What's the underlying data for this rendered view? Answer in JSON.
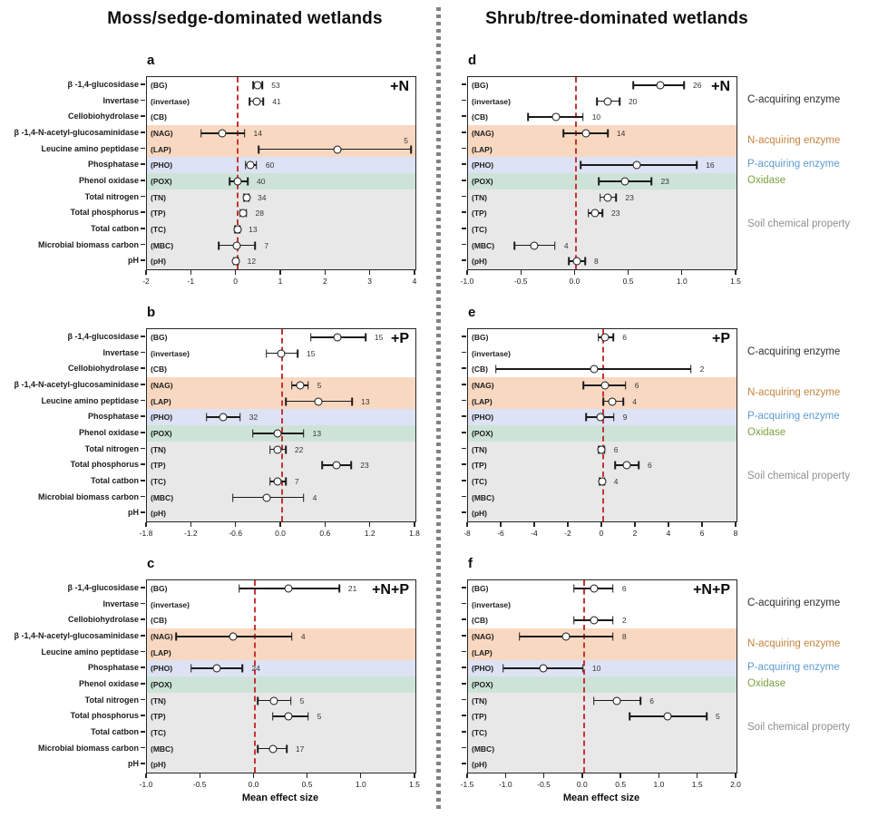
{
  "titles": {
    "left": "Moss/sedge-dominated wetlands",
    "right": "Shrub/tree-dominated wetlands"
  },
  "xaxis_title": "Mean effect size",
  "zero_line_color": "#c63434",
  "row_labels": {
    "full": [
      "β -1,4-glucosidase",
      "Invertase",
      "Cellobiohydrolase",
      "β -1,4-N-acetyl-glucosaminidase",
      "Leucine amino peptidase",
      "Phosphatase",
      "Phenol oxidase",
      "Total nitrogen",
      "Total phosphorus",
      "Total catbon",
      "Microbial biomass carbon",
      "pH"
    ],
    "abbr": [
      "(BG)",
      "(invertase)",
      "(CB)",
      "(NAG)",
      "(LAP)",
      "(PHO)",
      "(POX)",
      "(TN)",
      "(TP)",
      "(TC)",
      "(MBC)",
      "(pH)"
    ]
  },
  "row_categories": [
    "c",
    "c",
    "c",
    "n",
    "n",
    "p",
    "ox",
    "soil",
    "soil",
    "soil",
    "soil",
    "soil"
  ],
  "band_colors": {
    "c": "#ffffff",
    "n": "#f9d8c1",
    "p": "#dde2f4",
    "ox": "#cde3d8",
    "soil": "#e8e8e8"
  },
  "categories_legend": [
    {
      "key": "c",
      "label": "C-acquiring enzyme",
      "color": "#2e2e2e"
    },
    {
      "key": "n",
      "label": "N-acquiring enzyme",
      "color": "#c5843e"
    },
    {
      "key": "p",
      "label": "P-acquiring enzyme",
      "color": "#5d9bd1"
    },
    {
      "key": "ox",
      "label": "Oxidase",
      "color": "#7ca23f"
    },
    {
      "key": "soil",
      "label": "Soil chemical property",
      "color": "#8f8f8f"
    }
  ],
  "chart_data": {
    "type": "scatter",
    "subtype": "forest-plot-with-error-bars",
    "marker": "open-circle",
    "grid": false,
    "rows": [
      "BG",
      "invertase",
      "CB",
      "NAG",
      "LAP",
      "PHO",
      "POX",
      "TN",
      "TP",
      "TC",
      "MBC",
      "pH"
    ],
    "panels": [
      {
        "id": "a",
        "row": 0,
        "col": "left",
        "wetland": "Moss/sedge-dominated",
        "treatment": "+N",
        "xlim": [
          -2,
          4
        ],
        "tick_values": [
          -2,
          -1,
          0,
          1,
          2,
          3,
          4
        ],
        "tick_labels": [
          "-2",
          "-1",
          "0",
          "1",
          "2",
          "3",
          "4"
        ],
        "points": [
          {
            "mean": 0.47,
            "lo": 0.37,
            "hi": 0.58,
            "n": 53
          },
          {
            "mean": 0.45,
            "lo": 0.3,
            "hi": 0.6,
            "n": 41
          },
          null,
          {
            "mean": -0.32,
            "lo": -0.79,
            "hi": 0.18,
            "n": 14
          },
          {
            "mean": 2.25,
            "lo": 0.5,
            "hi": 3.9,
            "n": 5
          },
          {
            "mean": 0.32,
            "lo": 0.2,
            "hi": 0.45,
            "n": 60
          },
          {
            "mean": 0.03,
            "lo": -0.15,
            "hi": 0.25,
            "n": 40
          },
          {
            "mean": 0.22,
            "lo": 0.17,
            "hi": 0.27,
            "n": 34
          },
          {
            "mean": 0.15,
            "lo": 0.08,
            "hi": 0.22,
            "n": 28
          },
          {
            "mean": 0.02,
            "lo": -0.03,
            "hi": 0.07,
            "n": 13
          },
          {
            "mean": 0.0,
            "lo": -0.4,
            "hi": 0.42,
            "n": 7
          },
          {
            "mean": -0.01,
            "lo": -0.06,
            "hi": 0.04,
            "n": 12
          }
        ]
      },
      {
        "id": "b",
        "row": 1,
        "col": "left",
        "wetland": "Moss/sedge-dominated",
        "treatment": "+P",
        "xlim": [
          -1.8,
          1.8
        ],
        "tick_values": [
          -1.8,
          -1.2,
          -0.6,
          0,
          0.6,
          1.2,
          1.8
        ],
        "tick_labels": [
          "-1.8",
          "-1.2",
          "-0.6",
          "0.0",
          "0.6",
          "1.2",
          "1.8"
        ],
        "points": [
          {
            "mean": 0.75,
            "lo": 0.4,
            "hi": 1.13,
            "n": 15
          },
          {
            "mean": 0.0,
            "lo": -0.2,
            "hi": 0.22,
            "n": 15
          },
          null,
          {
            "mean": 0.25,
            "lo": 0.14,
            "hi": 0.36,
            "n": 5
          },
          {
            "mean": 0.5,
            "lo": 0.06,
            "hi": 0.95,
            "n": 13
          },
          {
            "mean": -0.78,
            "lo": -1.0,
            "hi": -0.55,
            "n": 32
          },
          {
            "mean": -0.05,
            "lo": -0.38,
            "hi": 0.3,
            "n": 13
          },
          {
            "mean": -0.05,
            "lo": -0.15,
            "hi": 0.06,
            "n": 22
          },
          {
            "mean": 0.74,
            "lo": 0.55,
            "hi": 0.94,
            "n": 23
          },
          {
            "mean": -0.05,
            "lo": -0.15,
            "hi": 0.06,
            "n": 7
          },
          {
            "mean": -0.2,
            "lo": -0.65,
            "hi": 0.3,
            "n": 4
          },
          null
        ]
      },
      {
        "id": "c",
        "row": 2,
        "col": "left",
        "wetland": "Moss/sedge-dominated",
        "treatment": "+N+P",
        "xlim": [
          -1.0,
          1.5
        ],
        "tick_values": [
          -1.0,
          -0.5,
          0,
          0.5,
          1.0,
          1.5
        ],
        "tick_labels": [
          "-1.0",
          "-0.5",
          "0.0",
          "0.5",
          "1.0",
          "1.5"
        ],
        "points": [
          {
            "mean": 0.32,
            "lo": -0.14,
            "hi": 0.79,
            "n": 21
          },
          null,
          null,
          {
            "mean": -0.2,
            "lo": -0.73,
            "hi": 0.35,
            "n": 4
          },
          null,
          {
            "mean": -0.35,
            "lo": -0.59,
            "hi": -0.11,
            "n": 24
          },
          null,
          {
            "mean": 0.18,
            "lo": 0.03,
            "hi": 0.34,
            "n": 5
          },
          {
            "mean": 0.32,
            "lo": 0.17,
            "hi": 0.5,
            "n": 5
          },
          null,
          {
            "mean": 0.17,
            "lo": 0.03,
            "hi": 0.3,
            "n": 17
          },
          null
        ]
      },
      {
        "id": "d",
        "row": 0,
        "col": "right",
        "wetland": "Shrub/tree-dominated",
        "treatment": "+N",
        "xlim": [
          -1.0,
          1.5
        ],
        "tick_values": [
          -1.0,
          -0.5,
          0,
          0.5,
          1.0,
          1.5
        ],
        "tick_labels": [
          "-1.0",
          "-0.5",
          "0.0",
          "0.5",
          "1.0",
          "1.5"
        ],
        "points": [
          {
            "mean": 0.79,
            "lo": 0.54,
            "hi": 1.01,
            "n": 26
          },
          {
            "mean": 0.3,
            "lo": 0.2,
            "hi": 0.41,
            "n": 20
          },
          {
            "mean": -0.18,
            "lo": -0.44,
            "hi": 0.07,
            "n": 10
          },
          {
            "mean": 0.1,
            "lo": -0.11,
            "hi": 0.3,
            "n": 14
          },
          null,
          {
            "mean": 0.57,
            "lo": 0.05,
            "hi": 1.13,
            "n": 16
          },
          {
            "mean": 0.46,
            "lo": 0.22,
            "hi": 0.71,
            "n": 23
          },
          {
            "mean": 0.3,
            "lo": 0.23,
            "hi": 0.38,
            "n": 23
          },
          {
            "mean": 0.18,
            "lo": 0.12,
            "hi": 0.25,
            "n": 23
          },
          null,
          {
            "mean": -0.38,
            "lo": -0.57,
            "hi": -0.19,
            "n": 4
          },
          {
            "mean": 0.01,
            "lo": -0.06,
            "hi": 0.09,
            "n": 8
          }
        ]
      },
      {
        "id": "e",
        "row": 1,
        "col": "right",
        "wetland": "Shrub/tree-dominated",
        "treatment": "+P",
        "xlim": [
          -8,
          8
        ],
        "tick_values": [
          -8,
          -6,
          -4,
          -2,
          0,
          2,
          4,
          6,
          8
        ],
        "tick_labels": [
          "-8",
          "-6",
          "-4",
          "-2",
          "0",
          "2",
          "4",
          "6",
          "8"
        ],
        "points": [
          {
            "mean": 0.18,
            "lo": -0.23,
            "hi": 0.66,
            "n": 6
          },
          null,
          {
            "mean": -0.49,
            "lo": -6.34,
            "hi": 5.28,
            "n": 2
          },
          {
            "mean": 0.15,
            "lo": -1.12,
            "hi": 1.39,
            "n": 6
          },
          {
            "mean": 0.58,
            "lo": 0.05,
            "hi": 1.26,
            "n": 4
          },
          {
            "mean": -0.12,
            "lo": -0.95,
            "hi": 0.69,
            "n": 9
          },
          null,
          {
            "mean": -0.03,
            "lo": -0.2,
            "hi": 0.15,
            "n": 6
          },
          {
            "mean": 1.44,
            "lo": 0.77,
            "hi": 2.16,
            "n": 6
          },
          {
            "mean": 0.0,
            "lo": -0.15,
            "hi": 0.15,
            "n": 4
          },
          null,
          null
        ]
      },
      {
        "id": "f",
        "row": 2,
        "col": "right",
        "wetland": "Shrub/tree-dominated",
        "treatment": "+N+P",
        "xlim": [
          -1.5,
          2.0
        ],
        "tick_values": [
          -1.5,
          -1.0,
          -0.5,
          0,
          0.5,
          1.0,
          1.5,
          2.0
        ],
        "tick_labels": [
          "-1.5",
          "-1.0",
          "-0.5",
          "0.0",
          "0.5",
          "1.0",
          "1.5",
          "2.0"
        ],
        "points": [
          {
            "mean": 0.14,
            "lo": -0.12,
            "hi": 0.39,
            "n": 6
          },
          null,
          {
            "mean": 0.14,
            "lo": -0.12,
            "hi": 0.39,
            "n": 2
          },
          {
            "mean": -0.22,
            "lo": -0.83,
            "hi": 0.39,
            "n": 8
          },
          null,
          {
            "mean": -0.52,
            "lo": -1.04,
            "hi": 0.0,
            "n": 10
          },
          null,
          {
            "mean": 0.44,
            "lo": 0.14,
            "hi": 0.75,
            "n": 6
          },
          {
            "mean": 1.1,
            "lo": 0.61,
            "hi": 1.61,
            "n": 5
          },
          null,
          null,
          null
        ]
      }
    ]
  }
}
